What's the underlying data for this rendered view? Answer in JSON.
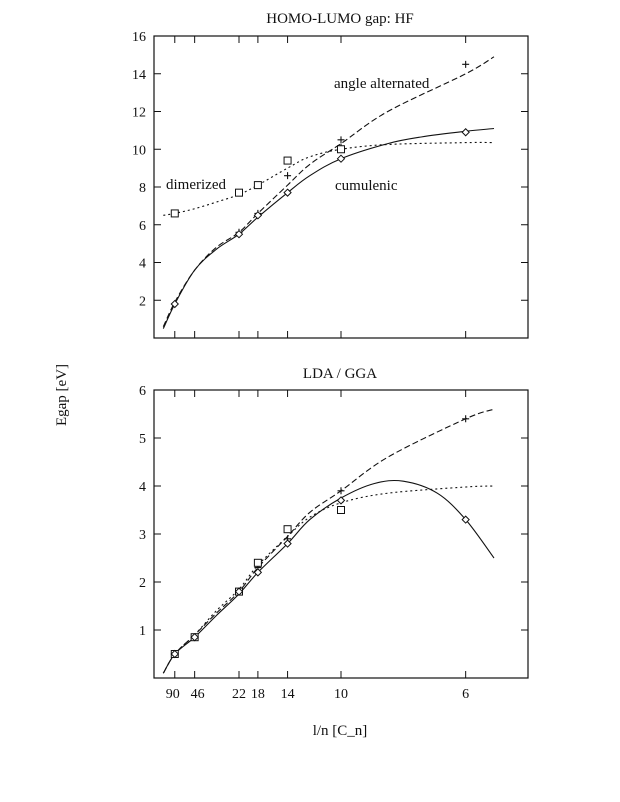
{
  "chart_data": [
    {
      "type": "line",
      "title": "HOMO-LUMO gap: HF",
      "xlabel": "",
      "ylabel": "Egap [eV]",
      "ylim": [
        0,
        16
      ],
      "yticks": [
        2,
        4,
        6,
        8,
        10,
        12,
        14,
        16
      ],
      "xticks": [
        90,
        46,
        22,
        18,
        14,
        10,
        6
      ],
      "xtick_labels_shown": false,
      "x_scale": "reciprocal",
      "x_reciprocal_range": [
        0,
        0.2
      ],
      "annotations": [
        "angle alternated",
        "dimerized",
        "cumulenic"
      ],
      "series": [
        {
          "name": "angle alternated",
          "marker": "+",
          "line": "dashed",
          "x": [
            22,
            18,
            14,
            10,
            10,
            6
          ],
          "y": [
            5.6,
            6.6,
            8.6,
            10.5,
            10.1,
            14.5
          ],
          "curve_x": [
            200,
            90,
            46,
            30,
            22,
            18,
            14,
            12,
            10,
            8,
            6,
            5.5
          ],
          "curve_y": [
            0.6,
            1.9,
            3.6,
            4.8,
            5.6,
            6.6,
            8.1,
            9.2,
            10.3,
            12.0,
            14.0,
            14.9
          ]
        },
        {
          "name": "dimerized",
          "marker": "square",
          "line": "dotted",
          "x": [
            90,
            22,
            18,
            14,
            10
          ],
          "y": [
            6.6,
            7.7,
            8.1,
            9.4,
            10.0
          ],
          "curve_x": [
            200,
            90,
            46,
            30,
            22,
            18,
            14,
            12,
            10,
            8,
            6,
            5.5
          ],
          "curve_y": [
            6.5,
            6.6,
            6.85,
            7.2,
            7.6,
            8.1,
            9.0,
            9.6,
            10.0,
            10.25,
            10.35,
            10.35
          ]
        },
        {
          "name": "cumulenic",
          "marker": "diamond",
          "line": "solid",
          "x": [
            90,
            22,
            18,
            14,
            10,
            6
          ],
          "y": [
            1.8,
            5.5,
            6.5,
            7.7,
            9.5,
            10.9
          ],
          "curve_x": [
            200,
            90,
            46,
            30,
            22,
            18,
            14,
            12,
            10,
            8,
            7,
            6,
            5.5
          ],
          "curve_y": [
            0.5,
            1.8,
            3.6,
            4.7,
            5.5,
            6.4,
            7.7,
            8.6,
            9.5,
            10.3,
            10.65,
            10.95,
            11.1
          ]
        }
      ]
    },
    {
      "type": "line",
      "title": "LDA / GGA",
      "xlabel": "l/n [C_n]",
      "ylabel": "",
      "ylim": [
        0,
        6
      ],
      "yticks": [
        1,
        2,
        3,
        4,
        5,
        6
      ],
      "xticks": [
        90,
        46,
        22,
        18,
        14,
        10,
        6
      ],
      "xtick_labels": [
        "90",
        "46",
        "22",
        "18",
        "14",
        "10",
        "6"
      ],
      "x_scale": "reciprocal",
      "x_reciprocal_range": [
        0,
        0.2
      ],
      "series": [
        {
          "marker": "+",
          "line": "dashed",
          "x": [
            90,
            46,
            22,
            18,
            14,
            10,
            6
          ],
          "y": [
            0.5,
            0.85,
            1.8,
            2.3,
            2.9,
            3.9,
            5.4
          ],
          "curve_x": [
            200,
            90,
            46,
            30,
            22,
            18,
            14,
            12,
            10,
            8,
            6,
            5.5
          ],
          "curve_y": [
            0.1,
            0.5,
            0.9,
            1.35,
            1.8,
            2.3,
            2.95,
            3.45,
            3.9,
            4.6,
            5.4,
            5.6
          ]
        },
        {
          "marker": "square",
          "line": "dotted",
          "x": [
            90,
            46,
            22,
            18,
            14,
            10
          ],
          "y": [
            0.5,
            0.85,
            1.8,
            2.4,
            3.1,
            3.5
          ],
          "curve_x": [
            200,
            90,
            46,
            30,
            22,
            18,
            14,
            12,
            10,
            8,
            6,
            5.5
          ],
          "curve_y": [
            0.1,
            0.5,
            0.9,
            1.4,
            1.85,
            2.35,
            2.95,
            3.35,
            3.65,
            3.85,
            3.98,
            4.0
          ]
        },
        {
          "marker": "diamond",
          "line": "solid",
          "x": [
            90,
            46,
            22,
            18,
            14,
            10,
            6
          ],
          "y": [
            0.5,
            0.85,
            1.8,
            2.2,
            2.8,
            3.7,
            3.3
          ],
          "curve_x": [
            200,
            90,
            46,
            30,
            22,
            18,
            14,
            12,
            10,
            8.5,
            7.5,
            6.6,
            6,
            5.5
          ],
          "curve_y": [
            0.1,
            0.5,
            0.85,
            1.3,
            1.75,
            2.2,
            2.8,
            3.3,
            3.75,
            4.05,
            4.1,
            3.85,
            3.3,
            2.5
          ]
        }
      ]
    }
  ]
}
